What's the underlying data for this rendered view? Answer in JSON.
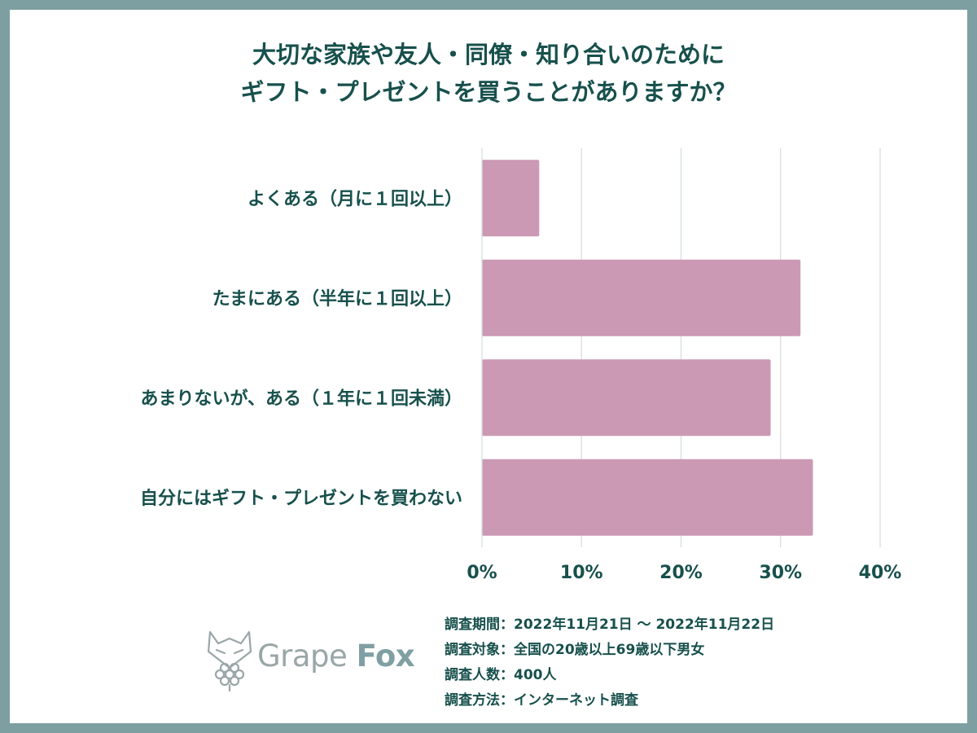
{
  "title_lines": [
    "大切な家族や友人・同僚・知り合いのために",
    "ギフト・プレゼントを買うことがありますか？"
  ],
  "colors": {
    "frame": "#7e9fa1",
    "bar": "#cc99b5",
    "text": "#17504c",
    "grid": "#d3dcdc"
  },
  "chart_data": {
    "type": "bar",
    "orientation": "horizontal",
    "categories": [
      "よくある（月に１回以上）",
      "たまにある（半年に１回以上）",
      "あまりないが、ある（１年に１回未満）",
      "自分にはギフト・プレゼントを買わない"
    ],
    "values": [
      5.75,
      32.0,
      29.0,
      33.25
    ],
    "xlim": [
      0,
      40
    ],
    "xticks": [
      0,
      10,
      20,
      30,
      40
    ],
    "tick_labels": [
      "0%",
      "10%",
      "20%",
      "30%",
      "40%"
    ],
    "grid": true,
    "legend": "none"
  },
  "notes": [
    "調査期間：2022年11月21日 ～ 2022年11月22日",
    "調査対象：全国の20歳以上69歳以下男女",
    "調査人数：400人",
    "調査方法：インターネット調査"
  ],
  "logo": {
    "word1": "Grape",
    "word2": "Fox",
    "icon": "fox-grape-logo-icon"
  }
}
